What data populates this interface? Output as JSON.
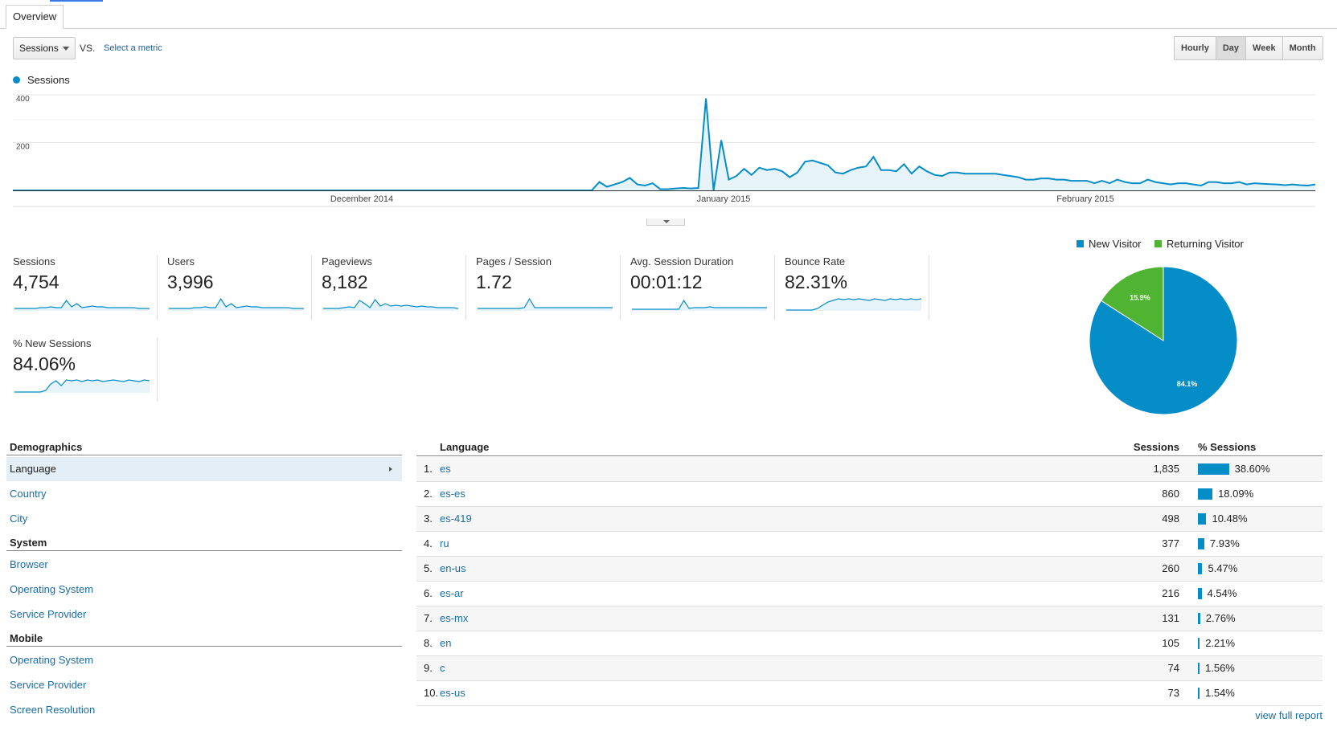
{
  "tab": {
    "label": "Overview"
  },
  "controls": {
    "metric": "Sessions",
    "vs": "VS.",
    "select_metric": "Select a metric",
    "periods": [
      {
        "label": "Hourly",
        "active": false
      },
      {
        "label": "Day",
        "active": true
      },
      {
        "label": "Week",
        "active": false
      },
      {
        "label": "Month",
        "active": false
      }
    ]
  },
  "chart_data": [
    {
      "type": "area",
      "series": [
        {
          "name": "Sessions",
          "color": "#058dc7",
          "values": [
            0,
            0,
            0,
            0,
            0,
            0,
            0,
            0,
            0,
            0,
            0,
            0,
            0,
            0,
            0,
            0,
            0,
            0,
            0,
            0,
            0,
            0,
            0,
            0,
            0,
            0,
            0,
            0,
            0,
            0,
            0,
            0,
            0,
            0,
            0,
            0,
            0,
            0,
            0,
            0,
            0,
            0,
            0,
            0,
            0,
            0,
            0,
            0,
            0,
            0,
            0,
            0,
            0,
            0,
            0,
            0,
            0,
            0,
            0,
            0,
            0,
            0,
            0,
            0,
            0,
            0,
            0,
            0,
            0,
            0,
            0,
            0,
            0,
            0,
            0,
            0,
            0,
            35,
            15,
            25,
            35,
            52,
            25,
            20,
            30,
            5,
            5,
            8,
            10,
            8,
            10,
            385,
            0,
            210,
            45,
            60,
            90,
            65,
            95,
            85,
            90,
            80,
            55,
            75,
            120,
            125,
            115,
            105,
            75,
            70,
            85,
            95,
            100,
            140,
            85,
            85,
            80,
            110,
            70,
            100,
            80,
            65,
            60,
            75,
            75,
            70,
            70,
            70,
            70,
            70,
            65,
            60,
            55,
            45,
            45,
            50,
            50,
            45,
            45,
            40,
            40,
            40,
            30,
            40,
            30,
            45,
            35,
            30,
            30,
            45,
            35,
            30,
            25,
            30,
            30,
            25,
            20,
            35,
            35,
            30,
            30,
            35,
            25,
            30,
            28,
            26,
            25,
            22,
            25,
            22,
            20,
            25
          ],
          "note_ignore": ""
        }
      ],
      "x_ticks": [
        "December 2014",
        "January 2015",
        "February 2015"
      ],
      "y_ticks": [
        400,
        200
      ],
      "ylim": [
        0,
        430
      ],
      "legend": "top-left"
    },
    {
      "type": "pie",
      "slices": [
        {
          "name": "New Visitor",
          "value": 84.1,
          "label": "84.1%",
          "color": "#058dc7"
        },
        {
          "name": "Returning Visitor",
          "value": 15.9,
          "label": "15.9%",
          "color": "#50b432"
        }
      ],
      "legend": "top"
    }
  ],
  "scorecards": [
    {
      "label": "Sessions",
      "value": "4,754"
    },
    {
      "label": "Users",
      "value": "3,996"
    },
    {
      "label": "Pageviews",
      "value": "8,182"
    },
    {
      "label": "Pages / Session",
      "value": "1.72"
    },
    {
      "label": "Avg. Session Duration",
      "value": "00:01:12"
    },
    {
      "label": "Bounce Rate",
      "value": "82.31%"
    },
    {
      "label": "% New Sessions",
      "value": "84.06%"
    }
  ],
  "demographics": {
    "sections": [
      {
        "title": "Demographics",
        "items": [
          {
            "label": "Language",
            "active": true
          },
          {
            "label": "Country",
            "active": false
          },
          {
            "label": "City",
            "active": false
          }
        ]
      },
      {
        "title": "System",
        "items": [
          {
            "label": "Browser",
            "active": false
          },
          {
            "label": "Operating System",
            "active": false
          },
          {
            "label": "Service Provider",
            "active": false
          }
        ]
      },
      {
        "title": "Mobile",
        "items": [
          {
            "label": "Operating System",
            "active": false
          },
          {
            "label": "Service Provider",
            "active": false
          },
          {
            "label": "Screen Resolution",
            "active": false
          }
        ]
      }
    ]
  },
  "table": {
    "headers": {
      "dimension": "Language",
      "sessions": "Sessions",
      "pct": "% Sessions"
    },
    "rows": [
      {
        "idx": "1.",
        "lang": "es",
        "sessions": "1,835",
        "pct": "38.60%",
        "pct_value": 38.6
      },
      {
        "idx": "2.",
        "lang": "es-es",
        "sessions": "860",
        "pct": "18.09%",
        "pct_value": 18.09
      },
      {
        "idx": "3.",
        "lang": "es-419",
        "sessions": "498",
        "pct": "10.48%",
        "pct_value": 10.48
      },
      {
        "idx": "4.",
        "lang": "ru",
        "sessions": "377",
        "pct": "7.93%",
        "pct_value": 7.93
      },
      {
        "idx": "5.",
        "lang": "en-us",
        "sessions": "260",
        "pct": "5.47%",
        "pct_value": 5.47
      },
      {
        "idx": "6.",
        "lang": "es-ar",
        "sessions": "216",
        "pct": "4.54%",
        "pct_value": 4.54
      },
      {
        "idx": "7.",
        "lang": "es-mx",
        "sessions": "131",
        "pct": "2.76%",
        "pct_value": 2.76
      },
      {
        "idx": "8.",
        "lang": "en",
        "sessions": "105",
        "pct": "2.21%",
        "pct_value": 2.21
      },
      {
        "idx": "9.",
        "lang": "c",
        "sessions": "74",
        "pct": "1.56%",
        "pct_value": 1.56
      },
      {
        "idx": "10.",
        "lang": "es-us",
        "sessions": "73",
        "pct": "1.54%",
        "pct_value": 1.54
      }
    ],
    "view_full_report": "view full report"
  }
}
